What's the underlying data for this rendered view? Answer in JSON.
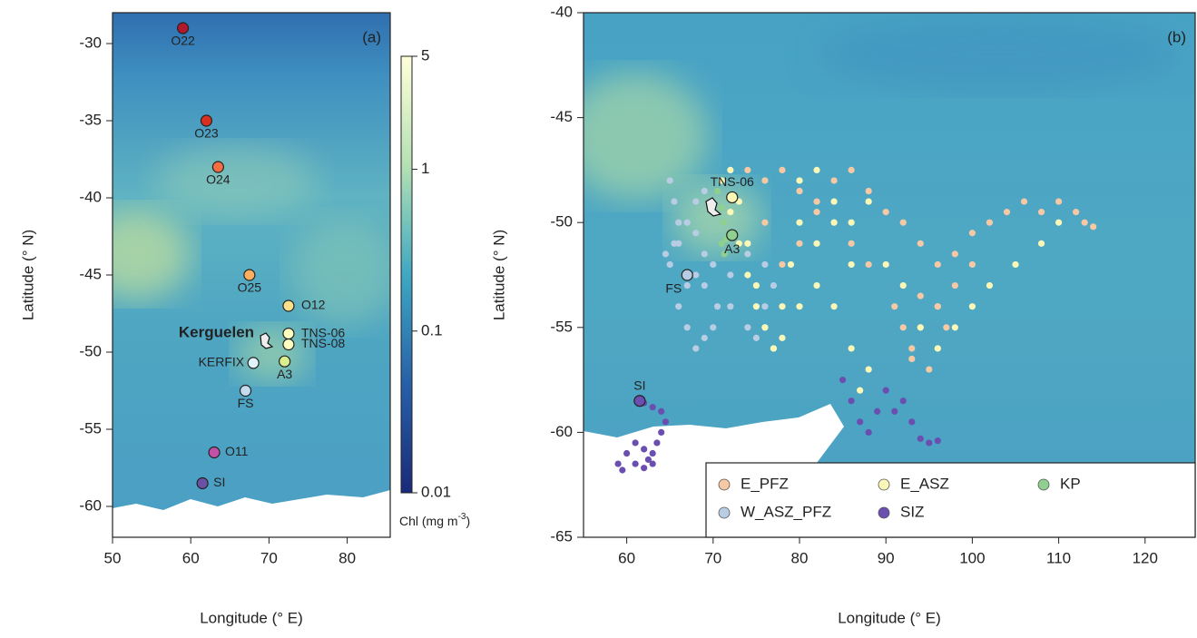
{
  "chart_data": [
    {
      "type": "scatter",
      "panel_label": "(a)",
      "x_label": "Longitude (° E)",
      "y_label": "Latitude (° N)",
      "xlim": [
        50,
        85.5
      ],
      "ylim": [
        -62,
        -28
      ],
      "xticks": [
        50,
        60,
        70,
        80
      ],
      "yticks": [
        -60,
        -55,
        -50,
        -45,
        -40,
        -35,
        -30
      ],
      "annotation": "Kerguelen",
      "points": {
        "names": [
          "O22",
          "O23",
          "O24",
          "O25",
          "O12",
          "TNS-06",
          "TNS-08",
          "A3",
          "KERFIX",
          "FS",
          "O11",
          "SI"
        ],
        "x": [
          59,
          62,
          63.5,
          67.5,
          72.5,
          72.5,
          72.5,
          72,
          68,
          67,
          63,
          61.5
        ],
        "y": [
          -29,
          -35,
          -38,
          -45,
          -47,
          -48.8,
          -49.5,
          -50.6,
          -50.7,
          -52.5,
          -56.5,
          -58.5
        ],
        "colors": [
          "#b2182b",
          "#d7301f",
          "#f46d43",
          "#fdae61",
          "#fee08b",
          "#ffffbf",
          "#ffffbf",
          "#d9ef8b",
          "#e0f3f8",
          "#c6dbef",
          "#c051a6",
          "#6a51a3"
        ]
      },
      "colorbar": {
        "label": "Chl (mg m",
        "label_sup": "-3",
        "label_end": ")",
        "log": true,
        "lim": [
          0.01,
          5
        ],
        "ticks": [
          0.01,
          0.1,
          1,
          5
        ]
      }
    },
    {
      "type": "scatter",
      "panel_label": "(b)",
      "x_label": "Longitude (° E)",
      "y_label": "Latitude (° N)",
      "xlim": [
        55,
        125.8
      ],
      "ylim": [
        -65,
        -40
      ],
      "xticks": [
        60,
        70,
        80,
        90,
        100,
        110,
        120
      ],
      "yticks": [
        -65,
        -60,
        -55,
        -50,
        -45,
        -40
      ],
      "legend": "bottom-right",
      "series": [
        {
          "name": "E_PFZ",
          "color": "#f6c8a4",
          "x": [
            74,
            76,
            78,
            80,
            82,
            84,
            86,
            88,
            90,
            92,
            94,
            96,
            98,
            100,
            102,
            104,
            106,
            108,
            110,
            112,
            113,
            114,
            100,
            98,
            96,
            94,
            93,
            92,
            91,
            93,
            95,
            96,
            97,
            96,
            94,
            88,
            86,
            84,
            82,
            80,
            78,
            76
          ],
          "y": [
            -47.5,
            -48,
            -47.5,
            -48.5,
            -49,
            -48,
            -47.5,
            -48.5,
            -49.5,
            -50,
            -51,
            -52,
            -51.5,
            -50.5,
            -50,
            -49.5,
            -49,
            -49.5,
            -49,
            -49.5,
            -50,
            -50.2,
            -52,
            -53,
            -54,
            -55,
            -56,
            -55,
            -54,
            -56.5,
            -57,
            -56,
            -55,
            -54,
            -53.5,
            -52,
            -51,
            -50,
            -49.5,
            -51,
            -52,
            -50
          ]
        },
        {
          "name": "E_ASZ",
          "color": "#fbf7b6",
          "x": [
            71,
            72,
            73,
            74,
            75,
            76,
            77,
            78,
            80,
            82,
            84,
            86,
            87,
            88,
            86,
            84,
            82,
            80,
            79,
            78,
            77,
            76,
            75,
            74,
            73,
            72,
            80,
            82,
            84,
            86,
            88,
            90,
            92,
            94,
            96,
            98,
            100,
            102,
            105,
            108,
            110
          ],
          "y": [
            -48,
            -49.5,
            -51,
            -52.5,
            -54,
            -55,
            -56,
            -55.5,
            -54,
            -53,
            -54,
            -56,
            -58,
            -57,
            -52,
            -50,
            -51,
            -50,
            -52,
            -54,
            -56,
            -55,
            -53,
            -51,
            -49,
            -47.5,
            -48,
            -47.5,
            -49,
            -50,
            -49,
            -52,
            -53,
            -55,
            -56,
            -55,
            -54,
            -53,
            -52,
            -51,
            -50
          ]
        },
        {
          "name": "KP",
          "color": "#8fcf8f",
          "x": [
            70.5,
            71,
            71.2,
            71.5,
            71.3,
            71
          ],
          "y": [
            -48.5,
            -49.3,
            -50,
            -50.8,
            -51.5,
            -51
          ]
        },
        {
          "name": "W_ASZ_PFZ",
          "color": "#b8cde4",
          "x": [
            65,
            65.5,
            66,
            65.5,
            64.5,
            65,
            66,
            68,
            69,
            67,
            66,
            67,
            68,
            69,
            70,
            69,
            68,
            67,
            68,
            69,
            70,
            72,
            74,
            75,
            76,
            77,
            76,
            74,
            72,
            70.5
          ],
          "y": [
            -48,
            -49,
            -50,
            -51,
            -51.5,
            -52,
            -51,
            -50.5,
            -51.5,
            -53,
            -54,
            -55,
            -56,
            -55.5,
            -55,
            -53,
            -52.5,
            -50,
            -49,
            -48.5,
            -52,
            -54,
            -55,
            -55.5,
            -54,
            -53,
            -52,
            -51.5,
            -52.5,
            -54
          ]
        },
        {
          "name": "SIZ",
          "color": "#6a4fb0",
          "x": [
            62,
            63,
            64,
            64.5,
            64,
            63.5,
            63,
            62.5,
            62,
            61,
            60,
            59,
            59.5,
            61,
            62,
            63,
            85,
            86,
            87,
            88,
            89,
            90,
            91,
            92,
            93,
            94,
            95,
            96
          ],
          "y": [
            -58.6,
            -58.8,
            -59,
            -59.5,
            -60,
            -60.5,
            -61,
            -61.3,
            -60.8,
            -60.5,
            -61,
            -61.5,
            -61.8,
            -61.5,
            -61.7,
            -61.5,
            -57.5,
            -58.5,
            -59.5,
            -60,
            -59,
            -58,
            -59,
            -58.5,
            -59.5,
            -60.3,
            -60.5,
            -60.4
          ]
        }
      ],
      "points": {
        "names": [
          "TNS-06",
          "A3",
          "FS",
          "SI"
        ],
        "x": [
          72.2,
          72.2,
          67,
          61.5
        ],
        "y": [
          -48.8,
          -50.6,
          -52.5,
          -58.5
        ],
        "colors": [
          "#fbf7b6",
          "#8fcf8f",
          "#b8cde4",
          "#6a4fb0"
        ]
      }
    }
  ]
}
